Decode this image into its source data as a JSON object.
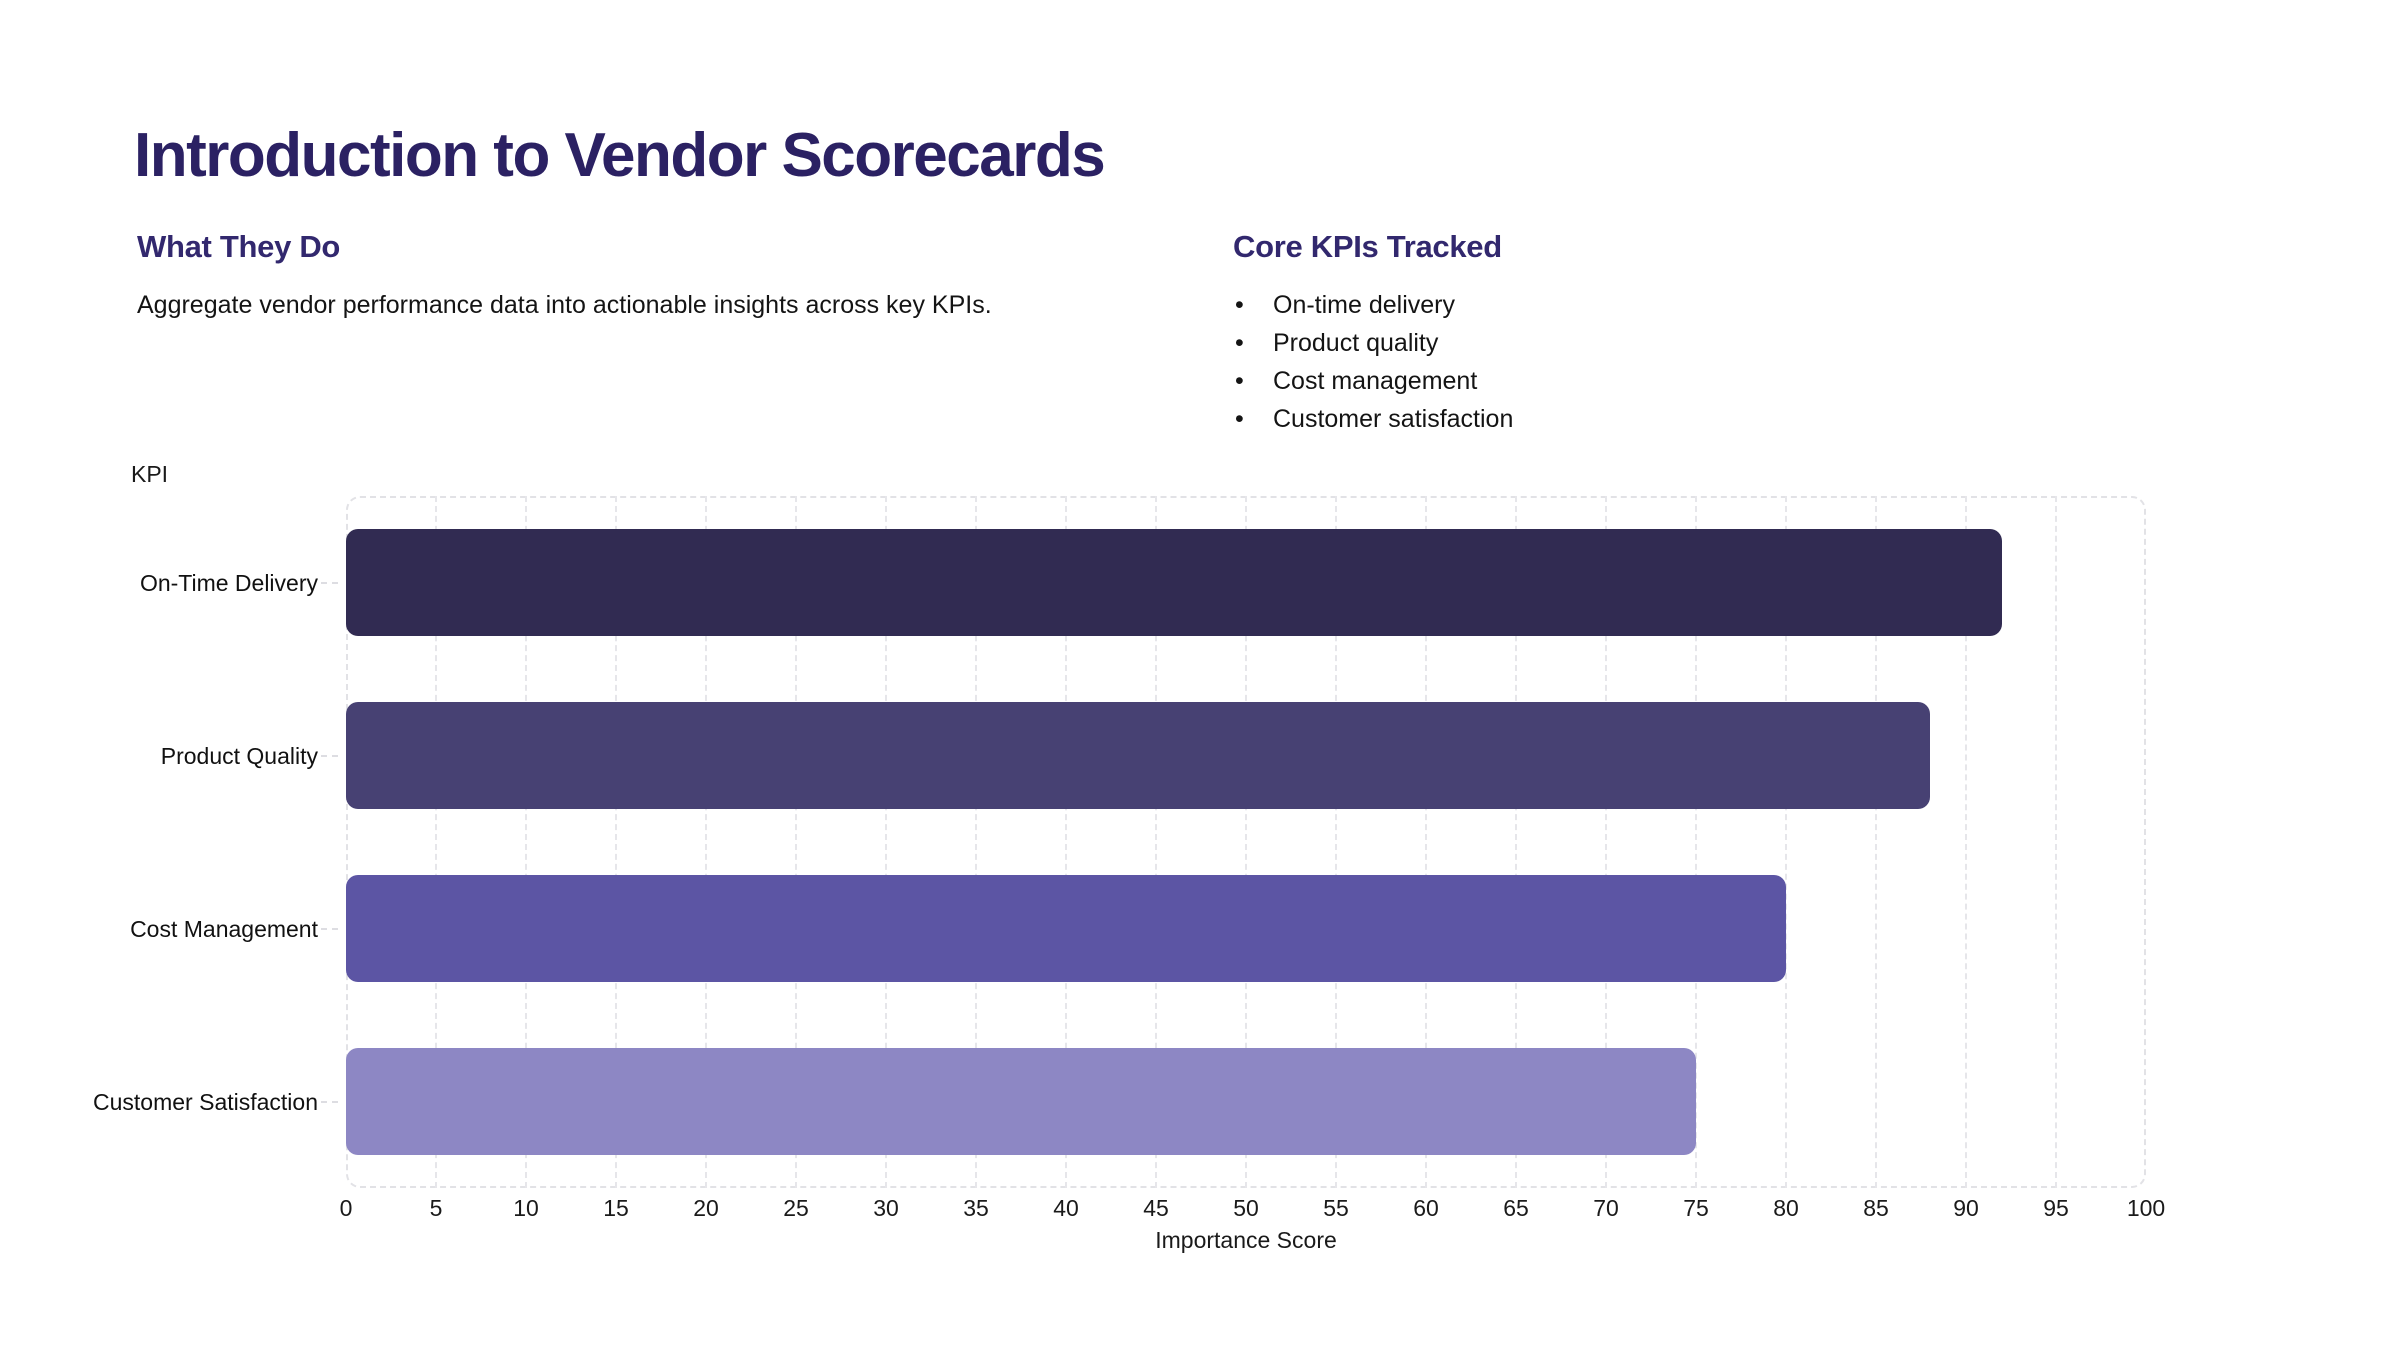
{
  "page": {
    "title": "Introduction to Vendor Scorecards"
  },
  "sections": {
    "left": {
      "heading": "What They Do",
      "body": "Aggregate vendor performance data into actionable insights across key KPIs."
    },
    "right": {
      "heading": "Core KPIs Tracked",
      "bullets": [
        "On-time delivery",
        "Product quality",
        "Cost management",
        "Customer satisfaction"
      ]
    }
  },
  "chart_data": {
    "type": "bar",
    "orientation": "horizontal",
    "categories": [
      "On-Time Delivery",
      "Product Quality",
      "Cost Management",
      "Customer Satisfaction"
    ],
    "values": [
      92,
      88,
      80,
      75
    ],
    "bar_colors": [
      "#312B52",
      "#474173",
      "#5C55A4",
      "#8D87C4"
    ],
    "xlabel": "Importance Score",
    "ylabel": "KPI",
    "xlim": [
      0,
      100
    ],
    "xticks": [
      0,
      5,
      10,
      15,
      20,
      25,
      30,
      35,
      40,
      45,
      50,
      55,
      60,
      65,
      70,
      75,
      80,
      85,
      90,
      95,
      100
    ],
    "grid": "vertical-dashed",
    "legend": false,
    "value_labels": false
  },
  "colors": {
    "title": "#2B2163",
    "section_heading": "#32286E",
    "body_text": "#141414",
    "axis_text": "#1A1A1A",
    "grid": "#E6E6EA",
    "background": "#FFFFFF"
  }
}
